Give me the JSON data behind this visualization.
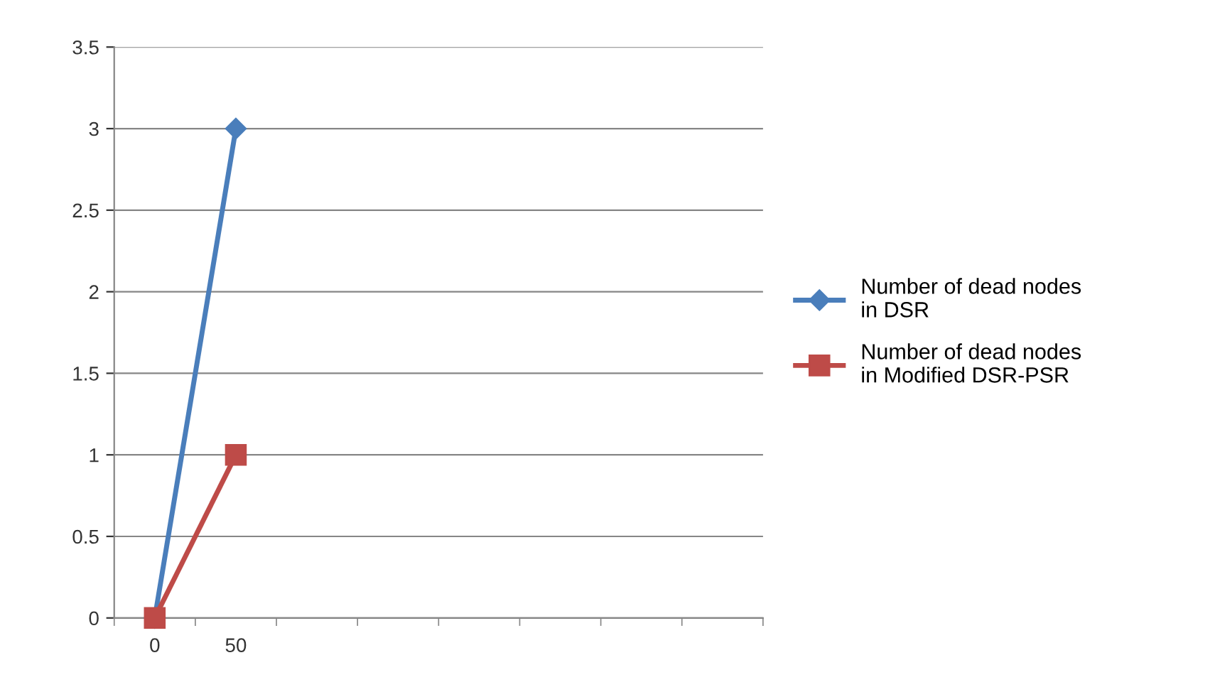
{
  "chart_data": {
    "type": "line",
    "categories": [
      "0",
      "50",
      null,
      null,
      null,
      null,
      null,
      null
    ],
    "series": [
      {
        "name": "Number of dead nodes in DSR",
        "color": "#4a7ebb",
        "marker": "diamond",
        "values": [
          0,
          3,
          null,
          null,
          null,
          null,
          null,
          null
        ]
      },
      {
        "name": "Number of dead nodes in Modified DSR-PSR",
        "color": "#be4b48",
        "marker": "square",
        "values": [
          0,
          1,
          null,
          null,
          null,
          null,
          null,
          null
        ]
      }
    ],
    "ylim": [
      0,
      3.5
    ],
    "yticks": [
      0,
      0.5,
      1,
      1.5,
      2,
      2.5,
      3,
      3.5
    ],
    "grid": "y",
    "legend": "right",
    "line_style": "solid"
  }
}
